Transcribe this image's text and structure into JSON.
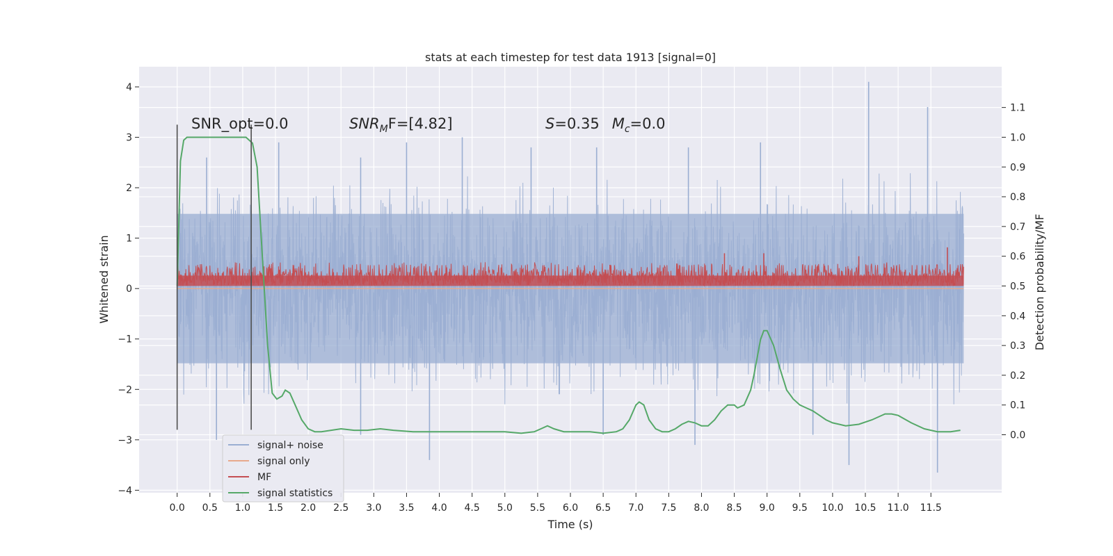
{
  "chart_data": {
    "type": "line",
    "title": "stats at each timestep for test data 1913 [signal=0]",
    "xlabel": "Time (s)",
    "ylabel": "Whitened strain",
    "y2label": "Detection probability/MF",
    "xlim": [
      -0.58,
      12.58
    ],
    "ylim": [
      -4.05,
      4.4
    ],
    "y2lim": [
      -0.195,
      1.237
    ],
    "xticks": [
      0.0,
      0.5,
      1.0,
      1.5,
      2.0,
      2.5,
      3.0,
      3.5,
      4.0,
      4.5,
      5.0,
      5.5,
      6.0,
      6.5,
      7.0,
      7.5,
      8.0,
      8.5,
      9.0,
      9.5,
      10.0,
      10.5,
      11.0,
      11.5
    ],
    "xtick_labels": [
      "0.0",
      "0.5",
      "1.0",
      "1.5",
      "2.0",
      "2.5",
      "3.0",
      "3.5",
      "4.0",
      "4.5",
      "5.0",
      "5.5",
      "6.0",
      "6.5",
      "7.0",
      "7.5",
      "8.0",
      "8.5",
      "9.0",
      "9.5",
      "10.0",
      "10.5",
      "11.0",
      "11.5"
    ],
    "yticks": [
      -4,
      -3,
      -2,
      -1,
      0,
      1,
      2,
      3,
      4
    ],
    "ytick_labels": [
      "−4",
      "−3",
      "−2",
      "−1",
      "0",
      "1",
      "2",
      "3",
      "4"
    ],
    "y2ticks": [
      0.0,
      0.1,
      0.2,
      0.3,
      0.4,
      0.5,
      0.6,
      0.7,
      0.8,
      0.9,
      1.0,
      1.1
    ],
    "y2tick_labels": [
      "0.0",
      "0.1",
      "0.2",
      "0.3",
      "0.4",
      "0.5",
      "0.6",
      "0.7",
      "0.8",
      "0.9",
      "1.0",
      "1.1"
    ],
    "grid": true,
    "legend_position": "bottom-left",
    "annotations": {
      "snr_opt": "SNR_opt=0.0",
      "snr_mf_main": "SNR",
      "snr_mf_sub": "M",
      "snr_mf_rest": "F=[4.82]",
      "s_label": "S",
      "s_value": "=0.35",
      "mc_main": "M",
      "mc_sub": "c",
      "mc_value": "=0.0"
    },
    "window_markers_x": [
      0.0,
      1.13
    ],
    "window_markers_y": [
      -2.8,
      3.25
    ],
    "series": [
      {
        "name": "signal+ noise",
        "color": "#9aaed2",
        "x_range": [
          0.0,
          12.0
        ],
        "typical_envelope": [
          -1.9,
          1.9
        ],
        "peaks": [
          {
            "x": 0.45,
            "y": 2.6
          },
          {
            "x": 1.55,
            "y": 2.9
          },
          {
            "x": 2.8,
            "y": 2.6
          },
          {
            "x": 3.5,
            "y": 2.9
          },
          {
            "x": 4.35,
            "y": 3.0
          },
          {
            "x": 5.4,
            "y": 2.8
          },
          {
            "x": 6.4,
            "y": 2.8
          },
          {
            "x": 7.8,
            "y": 2.8
          },
          {
            "x": 8.9,
            "y": 2.9
          },
          {
            "x": 10.55,
            "y": 4.1
          },
          {
            "x": 11.45,
            "y": 3.6
          }
        ],
        "troughs": [
          {
            "x": 0.6,
            "y": -3.0
          },
          {
            "x": 3.85,
            "y": -3.4
          },
          {
            "x": 7.9,
            "y": -3.1
          },
          {
            "x": 10.25,
            "y": -3.5
          },
          {
            "x": 11.6,
            "y": -3.65
          },
          {
            "x": 2.8,
            "y": -2.9
          },
          {
            "x": 9.7,
            "y": -2.9
          },
          {
            "x": 6.5,
            "y": -2.9
          }
        ]
      },
      {
        "name": "signal only",
        "color": "#e8a98c",
        "x": [
          0.0,
          12.0
        ],
        "y": [
          0.0,
          0.0
        ]
      },
      {
        "name": "MF",
        "color": "#c44e52",
        "axis": "right",
        "x_range": [
          0.0,
          12.0
        ],
        "baseline": 0.5,
        "typical_max": 0.57,
        "peaks": [
          {
            "x": 8.35,
            "y": 0.61
          },
          {
            "x": 8.95,
            "y": 0.61
          },
          {
            "x": 10.4,
            "y": 0.6
          },
          {
            "x": 11.75,
            "y": 0.63
          }
        ]
      },
      {
        "name": "signal statistics",
        "color": "#55a868",
        "axis": "right",
        "x": [
          0.0,
          0.05,
          0.1,
          0.15,
          0.25,
          0.4,
          0.6,
          0.8,
          0.95,
          1.05,
          1.15,
          1.22,
          1.3,
          1.38,
          1.45,
          1.52,
          1.6,
          1.65,
          1.72,
          1.8,
          1.9,
          2.0,
          2.1,
          2.2,
          2.35,
          2.5,
          2.7,
          2.9,
          3.1,
          3.3,
          3.6,
          3.9,
          4.2,
          4.5,
          4.8,
          5.0,
          5.25,
          5.45,
          5.55,
          5.65,
          5.75,
          5.9,
          6.1,
          6.3,
          6.5,
          6.7,
          6.8,
          6.9,
          7.0,
          7.05,
          7.12,
          7.2,
          7.3,
          7.4,
          7.5,
          7.6,
          7.7,
          7.8,
          7.9,
          8.0,
          8.1,
          8.2,
          8.3,
          8.4,
          8.5,
          8.55,
          8.65,
          8.75,
          8.8,
          8.9,
          8.95,
          9.0,
          9.1,
          9.2,
          9.3,
          9.4,
          9.5,
          9.6,
          9.7,
          9.8,
          9.9,
          10.0,
          10.1,
          10.2,
          10.4,
          10.6,
          10.8,
          10.9,
          11.0,
          11.2,
          11.4,
          11.6,
          11.8,
          11.95
        ],
        "y": [
          0.5,
          0.92,
          0.99,
          1.0,
          1.0,
          1.0,
          1.0,
          1.0,
          1.0,
          1.0,
          0.98,
          0.9,
          0.6,
          0.3,
          0.14,
          0.12,
          0.13,
          0.15,
          0.14,
          0.1,
          0.05,
          0.02,
          0.01,
          0.01,
          0.015,
          0.02,
          0.015,
          0.015,
          0.02,
          0.015,
          0.01,
          0.01,
          0.01,
          0.01,
          0.01,
          0.01,
          0.005,
          0.01,
          0.02,
          0.03,
          0.02,
          0.01,
          0.01,
          0.01,
          0.005,
          0.01,
          0.02,
          0.05,
          0.1,
          0.11,
          0.1,
          0.05,
          0.02,
          0.01,
          0.01,
          0.02,
          0.035,
          0.045,
          0.04,
          0.03,
          0.03,
          0.05,
          0.08,
          0.1,
          0.1,
          0.09,
          0.1,
          0.15,
          0.2,
          0.32,
          0.35,
          0.35,
          0.3,
          0.22,
          0.15,
          0.12,
          0.1,
          0.09,
          0.08,
          0.065,
          0.05,
          0.04,
          0.035,
          0.03,
          0.035,
          0.05,
          0.07,
          0.07,
          0.065,
          0.04,
          0.02,
          0.01,
          0.01,
          0.015
        ]
      }
    ]
  }
}
